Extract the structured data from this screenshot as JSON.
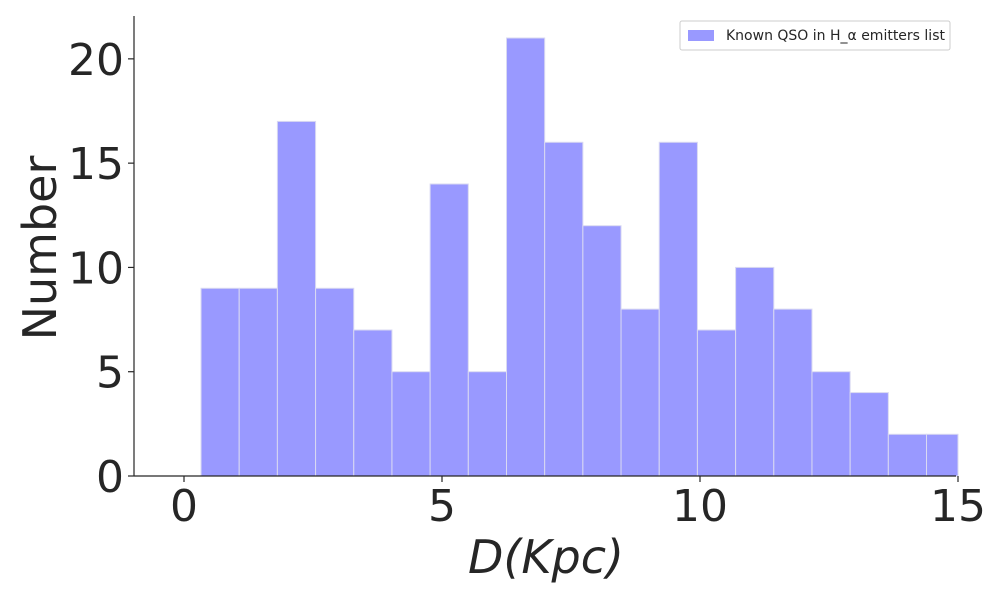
{
  "chart_data": {
    "type": "bar",
    "variant": "histogram",
    "bins": [
      {
        "x0": 0.33,
        "x1": 1.07,
        "count": 9
      },
      {
        "x0": 1.07,
        "x1": 1.81,
        "count": 9
      },
      {
        "x0": 1.81,
        "x1": 2.55,
        "count": 17
      },
      {
        "x0": 2.55,
        "x1": 3.29,
        "count": 9
      },
      {
        "x0": 3.29,
        "x1": 4.03,
        "count": 7
      },
      {
        "x0": 4.03,
        "x1": 4.77,
        "count": 5
      },
      {
        "x0": 4.77,
        "x1": 5.51,
        "count": 14
      },
      {
        "x0": 5.51,
        "x1": 6.25,
        "count": 5
      },
      {
        "x0": 6.25,
        "x1": 6.99,
        "count": 21
      },
      {
        "x0": 6.99,
        "x1": 7.73,
        "count": 16
      },
      {
        "x0": 7.73,
        "x1": 8.47,
        "count": 12
      },
      {
        "x0": 8.47,
        "x1": 9.21,
        "count": 8
      },
      {
        "x0": 9.21,
        "x1": 9.95,
        "count": 16
      },
      {
        "x0": 9.95,
        "x1": 10.69,
        "count": 7
      },
      {
        "x0": 10.69,
        "x1": 11.43,
        "count": 10
      },
      {
        "x0": 11.43,
        "x1": 12.17,
        "count": 8
      },
      {
        "x0": 12.17,
        "x1": 12.91,
        "count": 5
      },
      {
        "x0": 12.91,
        "x1": 13.65,
        "count": 4
      },
      {
        "x0": 13.65,
        "x1": 14.39,
        "count": 2
      },
      {
        "x0": 14.39,
        "x1": 15.0,
        "count": 2
      }
    ],
    "series_name": "Known QSO in H_α emitters list",
    "xlabel": "D(Kpc)",
    "ylabel": "Number",
    "xlim": [
      -1.0,
      15.0
    ],
    "ylim": [
      0,
      22
    ],
    "xticks": [
      0,
      5,
      10,
      15
    ],
    "yticks": [
      0,
      5,
      10,
      15,
      20
    ],
    "grid": false,
    "legend_position": "top-right",
    "colors": {
      "bar": "#9999ff",
      "bar_edge": "#d9d9f2",
      "axis": "#262626"
    }
  }
}
